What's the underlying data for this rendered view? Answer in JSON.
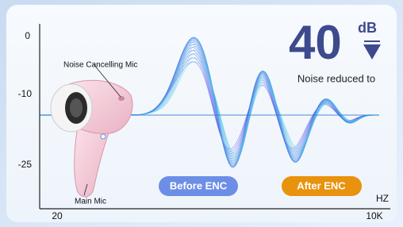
{
  "axis": {
    "y_labels": [
      "0",
      "-10",
      "-25"
    ],
    "x_labels": [
      "20",
      "10K"
    ],
    "x_unit": "HZ"
  },
  "headline": {
    "value": "40",
    "unit": "dB",
    "caption": "Noise reduced to"
  },
  "callouts": [
    "Noise Cancelling Mic",
    "Main Mic"
  ],
  "badges": [
    "Before ENC",
    "After ENC"
  ]
}
